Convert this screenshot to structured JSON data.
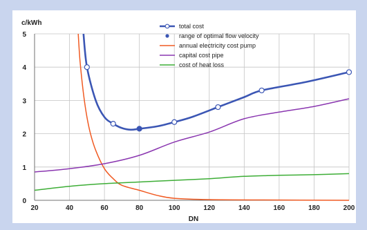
{
  "colors": {
    "frame": "#c9d5ee",
    "grid": "#c4c4c4",
    "axis": "#707070",
    "total_cost": "#3b56b4",
    "optimal_marker": "#3b56b4",
    "electricity": "#f05a22",
    "capital": "#8a36b0",
    "heat_loss": "#3cad35"
  },
  "chart_data": {
    "type": "line",
    "unit_label": "c/kWh",
    "xlabel": "DN",
    "ylabel": "",
    "xlim": [
      20,
      200
    ],
    "ylim": [
      0,
      5
    ],
    "x_ticks": [
      20,
      40,
      60,
      80,
      100,
      120,
      140,
      160,
      180,
      200
    ],
    "y_ticks": [
      0,
      1,
      2,
      3,
      4,
      5
    ],
    "grid": true,
    "legend_position": "top-center",
    "series": [
      {
        "name": "total cost",
        "color": "#3b56b4",
        "style": "line-with-open-circles",
        "x": [
          48,
          50,
          55,
          60,
          65,
          70,
          75,
          80,
          90,
          100,
          110,
          125,
          140,
          150,
          175,
          200
        ],
        "y": [
          5.0,
          4.0,
          3.0,
          2.5,
          2.3,
          2.17,
          2.12,
          2.15,
          2.22,
          2.35,
          2.5,
          2.8,
          3.1,
          3.3,
          3.55,
          3.85
        ],
        "marker_x": [
          50,
          65,
          80,
          100,
          125,
          150,
          200
        ],
        "marker_y": [
          4.0,
          2.3,
          2.15,
          2.35,
          2.8,
          3.3,
          3.85
        ]
      },
      {
        "name": "range of optimal flow velocity",
        "color": "#3b56b4",
        "style": "filled-dot",
        "x": [
          80
        ],
        "y": [
          2.15
        ]
      },
      {
        "name": "annual electricity cost pump",
        "color": "#f05a22",
        "style": "line",
        "x": [
          45,
          46,
          48,
          50,
          52,
          55,
          60,
          65,
          70,
          80,
          90,
          100,
          120,
          150,
          200
        ],
        "y": [
          5.0,
          4.2,
          3.2,
          2.5,
          2.0,
          1.5,
          0.95,
          0.65,
          0.45,
          0.3,
          0.15,
          0.06,
          0.02,
          0.01,
          0.0
        ]
      },
      {
        "name": "capital cost pipe",
        "color": "#8a36b0",
        "style": "line",
        "x": [
          20,
          40,
          60,
          80,
          100,
          120,
          140,
          160,
          180,
          200
        ],
        "y": [
          0.85,
          0.95,
          1.1,
          1.35,
          1.75,
          2.05,
          2.45,
          2.65,
          2.82,
          3.05
        ]
      },
      {
        "name": "cost of heat loss",
        "color": "#3cad35",
        "style": "line",
        "x": [
          20,
          40,
          60,
          80,
          100,
          120,
          140,
          160,
          180,
          200
        ],
        "y": [
          0.3,
          0.42,
          0.5,
          0.55,
          0.6,
          0.65,
          0.72,
          0.75,
          0.77,
          0.8
        ]
      }
    ]
  }
}
